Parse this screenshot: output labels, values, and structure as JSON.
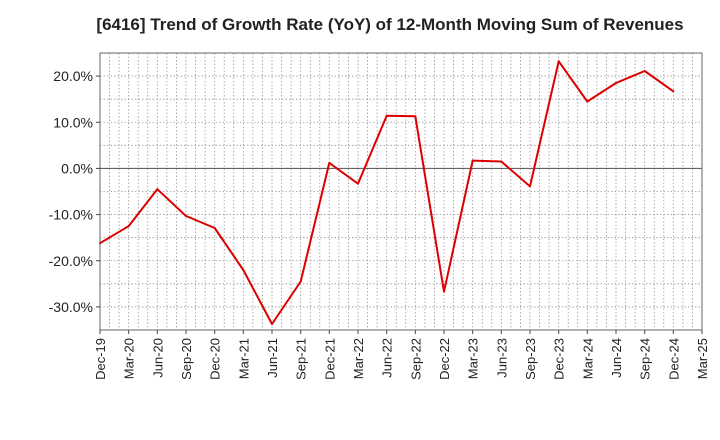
{
  "chart_data": {
    "type": "line",
    "title": "[6416]  Trend of Growth Rate (YoY) of 12-Month Moving Sum of Revenues",
    "xlabel": "",
    "ylabel": "",
    "ylim": [
      -35,
      25
    ],
    "yticks": [
      -30,
      -20,
      -10,
      0,
      10,
      20
    ],
    "ytick_labels": [
      "-30.0%",
      "-20.0%",
      "-10.0%",
      "0.0%",
      "10.0%",
      "20.0%"
    ],
    "x_tick_labels": [
      "Dec-19",
      "Mar-20",
      "Jun-20",
      "Sep-20",
      "Dec-20",
      "Mar-21",
      "Jun-21",
      "Sep-21",
      "Dec-21",
      "Mar-22",
      "Jun-22",
      "Sep-22",
      "Dec-22",
      "Mar-23",
      "Jun-23",
      "Sep-23",
      "Dec-23",
      "Mar-24",
      "Jun-24",
      "Sep-24",
      "Dec-24",
      "Mar-25"
    ],
    "grid": true,
    "color": "#dd0000",
    "series": [
      {
        "values": [
          -16.2,
          -12.5,
          -4.5,
          -10.3,
          -12.9,
          -22.0,
          -33.7,
          -24.5,
          1.2,
          -3.3,
          11.4,
          11.3,
          -26.7,
          1.7,
          1.5,
          -3.9,
          23.2,
          14.5,
          18.5,
          21.1,
          16.7
        ]
      }
    ]
  }
}
